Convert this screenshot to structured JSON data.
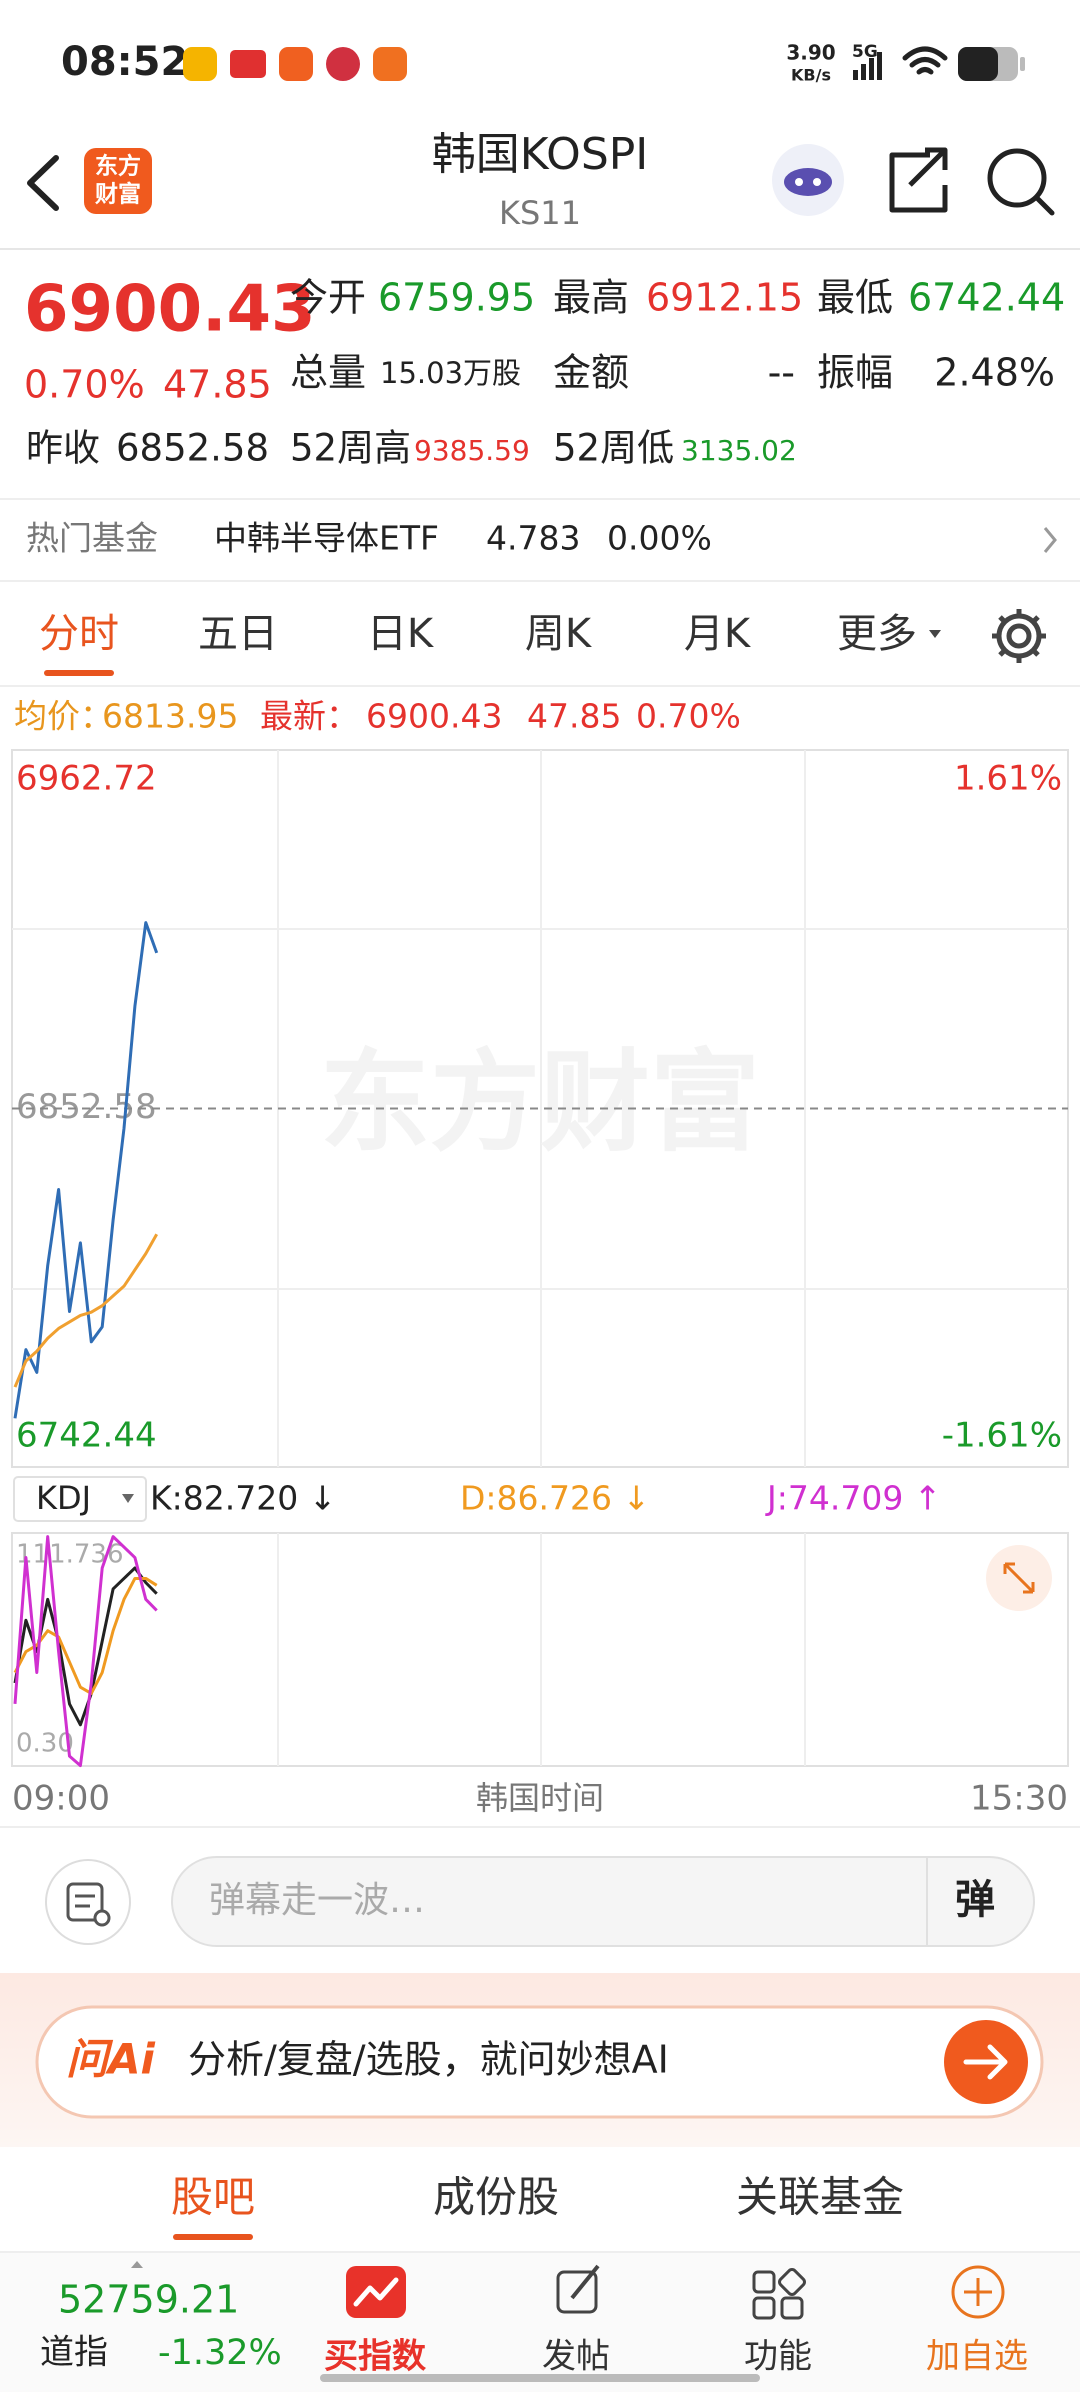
{
  "status_bar": {
    "time": "08:52",
    "speed": "3.90",
    "speed_unit": "KB/s",
    "network": "5G"
  },
  "header": {
    "logo": [
      "东方",
      "财富"
    ],
    "title": "韩国KOSPI",
    "code": "KS11"
  },
  "quote": {
    "price": "6900.43",
    "change_pct": "0.70%",
    "change": "47.85",
    "prev_close_label": "昨收",
    "prev_close": "6852.58",
    "open_label": "今开",
    "open": "6759.95",
    "high_label": "最高",
    "high": "6912.15",
    "low_label": "最低",
    "low": "6742.44",
    "volume_label": "总量",
    "volume": "15.03万股",
    "amount_label": "金额",
    "amount": "--",
    "amplitude_label": "振幅",
    "amplitude": "2.48%",
    "week52_high_label": "52周高",
    "week52_high": "9385.59",
    "week52_low_label": "52周低",
    "week52_low": "3135.02"
  },
  "hot_fund": {
    "label": "热门基金",
    "name": "中韩半导体ETF",
    "price": "4.783",
    "change_pct": "0.00%"
  },
  "tabs": [
    "分时",
    "五日",
    "日K",
    "周K",
    "月K",
    "更多"
  ],
  "info_line": {
    "avg_label": "均价：",
    "avg": "6813.95",
    "latest_label": "最新：",
    "latest": "6900.43",
    "change": "47.85",
    "change_pct": "0.70%"
  },
  "intraday_chart": {
    "type": "line",
    "watermark": "东方财富",
    "ylim": [
      6742.44,
      6962.72
    ],
    "yticks": [
      6742.44,
      6852.58,
      6962.72
    ],
    "y2lim": [
      -1.61,
      1.61
    ],
    "y2ticks": [
      {
        "value": -1.61,
        "label": "-1.61%"
      },
      {
        "value": 1.61,
        "label": "1.61%"
      }
    ],
    "series": [
      {
        "name": "price",
        "color": "#2f6db5",
        "values": [
          6757.4,
          6778.5,
          6771.5,
          6804.3,
          6827.7,
          6790.2,
          6811.3,
          6780.9,
          6785.5,
          6818.3,
          6846.5,
          6884.0,
          6909.7,
          6900.4
        ]
      },
      {
        "name": "avg",
        "color": "#f0a030",
        "values": [
          6767,
          6775,
          6778,
          6782,
          6785,
          6787,
          6789,
          6790,
          6792,
          6795,
          6798,
          6803,
          6808,
          6813.95
        ]
      }
    ]
  },
  "kdj_chart": {
    "type": "line",
    "selector": "KDJ",
    "ylim": [
      0.3,
      111.736
    ],
    "yticks": [
      {
        "value": 0.3,
        "label": "0.30"
      },
      111.736
    ],
    "series": [
      {
        "name": "K",
        "label": "K:82.720 ↓",
        "color": "#222222",
        "values": [
          40,
          70,
          55,
          80,
          60,
          30,
          20,
          35,
          60,
          85,
          90,
          95,
          88,
          82.72
        ]
      },
      {
        "name": "D",
        "label": "D:86.726 ↓",
        "color": "#f09a20",
        "values": [
          45,
          55,
          58,
          65,
          62,
          50,
          38,
          35,
          45,
          65,
          80,
          90,
          90,
          86.726
        ]
      },
      {
        "name": "J",
        "label": "J:74.709 ↑",
        "color": "#d030d0",
        "values": [
          30,
          100,
          45,
          110,
          55,
          5,
          0.5,
          40,
          95,
          110,
          105,
          100,
          80,
          74.709
        ]
      }
    ]
  },
  "time_axis": {
    "start": "09:00",
    "label": "韩国时间",
    "end": "15:30"
  },
  "comment": {
    "placeholder": "弹幕走一波…",
    "button": "弹"
  },
  "ai_banner": {
    "logo": "问Ai",
    "text": "分析/复盘/选股，就问妙想AI"
  },
  "sub_tabs": [
    "股吧",
    "成份股",
    "关联基金"
  ],
  "bottom_nav": {
    "index_value": "52759.21",
    "index_name": "道指",
    "index_change": "-1.32%",
    "items": [
      "买指数",
      "发帖",
      "功能",
      "加自选"
    ]
  }
}
